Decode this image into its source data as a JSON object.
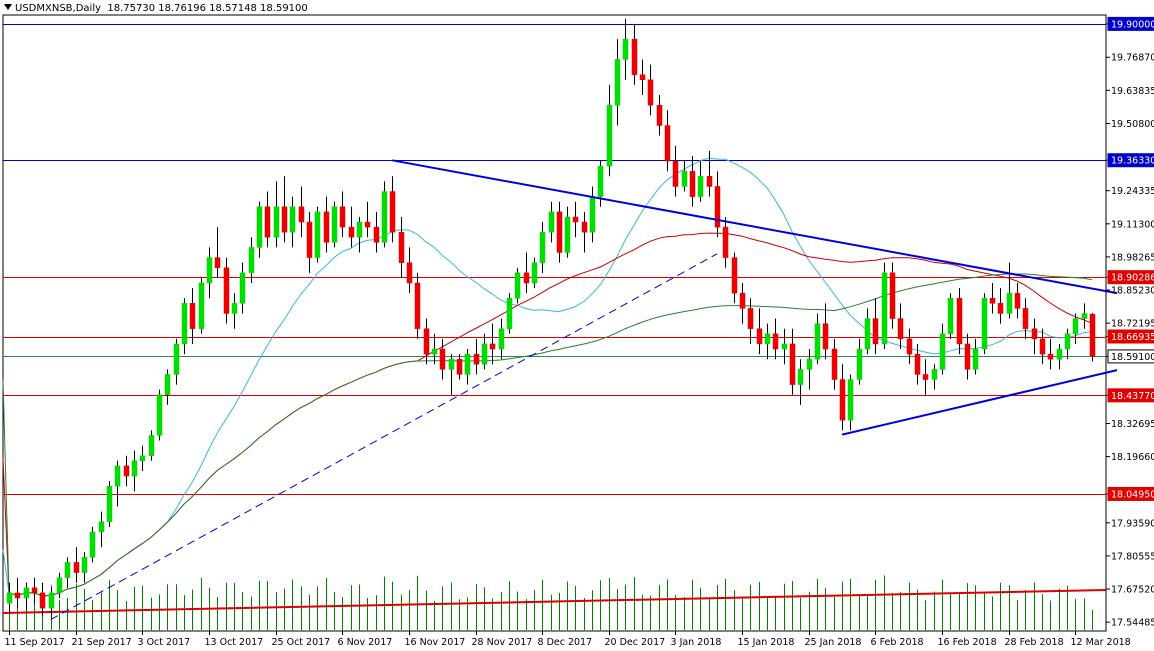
{
  "header": {
    "symbol": "USDMXNSB,Daily",
    "ohlc": "18.75730 18.76196 18.57148 18.59100"
  },
  "chart_data": {
    "type": "candlestick",
    "symbol": "USDMXNSB",
    "timeframe": "Daily",
    "ylim": [
      17.51,
      19.935
    ],
    "y_ticks": [
      "19.90000",
      "19.76870",
      "19.63835",
      "19.50800",
      "19.36330",
      "19.24335",
      "19.11300",
      "18.98265",
      "18.90286",
      "18.85230",
      "18.72195",
      "18.66935",
      "18.59100",
      "18.43770",
      "18.32695",
      "18.19660",
      "18.04950",
      "17.93590",
      "17.80555",
      "17.67520",
      "17.54485"
    ],
    "x_ticks": [
      {
        "label": "11 Sep 2017",
        "bar": 0
      },
      {
        "label": "21 Sep 2017",
        "bar": 8
      },
      {
        "label": "3 Oct 2017",
        "bar": 16
      },
      {
        "label": "13 Oct 2017",
        "bar": 24
      },
      {
        "label": "25 Oct 2017",
        "bar": 32
      },
      {
        "label": "6 Nov 2017",
        "bar": 40
      },
      {
        "label": "16 Nov 2017",
        "bar": 48
      },
      {
        "label": "28 Nov 2017",
        "bar": 56
      },
      {
        "label": "8 Dec 2017",
        "bar": 64
      },
      {
        "label": "20 Dec 2017",
        "bar": 72
      },
      {
        "label": "3 Jan 2018",
        "bar": 80
      },
      {
        "label": "15 Jan 2018",
        "bar": 88
      },
      {
        "label": "25 Jan 2018",
        "bar": 96
      },
      {
        "label": "6 Feb 2018",
        "bar": 104
      },
      {
        "label": "16 Feb 2018",
        "bar": 112
      },
      {
        "label": "28 Feb 2018",
        "bar": 120
      },
      {
        "label": "12 Mar 2018",
        "bar": 128
      }
    ],
    "horizontal_levels": [
      {
        "value": 19.9,
        "label": "19.90000",
        "color": "#0000cc",
        "tag_bg": "#0000cc"
      },
      {
        "value": 19.3633,
        "label": "19.36330",
        "color": "#0000cc",
        "tag_bg": "#0000cc"
      },
      {
        "value": 18.90286,
        "label": "18.90286",
        "color": "#e00000",
        "tag_bg": "#e00000"
      },
      {
        "value": 18.66935,
        "label": "18.66935",
        "color": "#e00000",
        "tag_bg": "#e00000"
      },
      {
        "value": 18.591,
        "label": "18.59100",
        "color": "#2e8b57",
        "tag_bg": "#ffffff"
      },
      {
        "value": 18.4377,
        "label": "18.43770",
        "color": "#e00000",
        "tag_bg": "#e00000"
      },
      {
        "value": 18.0495,
        "label": "18.04950",
        "color": "#e00000",
        "tag_bg": "#e00000"
      }
    ],
    "trendlines": [
      {
        "style": "solid",
        "color": "#0000dd",
        "from": {
          "bar": 46,
          "price": 19.363
        },
        "to": {
          "bar": 133,
          "price": 18.84
        }
      },
      {
        "style": "solid",
        "color": "#0000dd",
        "from": {
          "bar": 100,
          "price": 18.283
        },
        "to": {
          "bar": 133,
          "price": 18.537
        }
      },
      {
        "style": "dashed",
        "color": "#0000dd",
        "from": {
          "bar": 5,
          "price": 17.555
        },
        "to": {
          "bar": 85,
          "price": 18.995
        }
      }
    ],
    "colors": {
      "up": "#00dd00",
      "down": "#ee0000",
      "volume": "#008000",
      "ma_blue": "#3cb6d6",
      "ma_red": "#cc0000",
      "ma_green": "#2e7d32",
      "volume_ma": "#dd0000"
    },
    "candles": [
      [
        17.62,
        17.7,
        17.58,
        17.66
      ],
      [
        17.66,
        17.72,
        17.6,
        17.64
      ],
      [
        17.64,
        17.7,
        17.59,
        17.68
      ],
      [
        17.68,
        17.72,
        17.62,
        17.66
      ],
      [
        17.66,
        17.7,
        17.57,
        17.6
      ],
      [
        17.6,
        17.68,
        17.56,
        17.66
      ],
      [
        17.66,
        17.74,
        17.64,
        17.72
      ],
      [
        17.72,
        17.8,
        17.68,
        17.78
      ],
      [
        17.78,
        17.84,
        17.7,
        17.74
      ],
      [
        17.74,
        17.82,
        17.7,
        17.8
      ],
      [
        17.8,
        17.92,
        17.78,
        17.9
      ],
      [
        17.9,
        17.98,
        17.84,
        17.94
      ],
      [
        17.94,
        18.1,
        17.92,
        18.08
      ],
      [
        18.08,
        18.18,
        18.0,
        18.16
      ],
      [
        18.16,
        18.2,
        18.08,
        18.12
      ],
      [
        18.12,
        18.22,
        18.06,
        18.18
      ],
      [
        18.18,
        18.24,
        18.14,
        18.2
      ],
      [
        18.2,
        18.3,
        18.18,
        18.28
      ],
      [
        18.28,
        18.46,
        18.26,
        18.44
      ],
      [
        18.44,
        18.54,
        18.4,
        18.52
      ],
      [
        18.52,
        18.66,
        18.48,
        18.64
      ],
      [
        18.64,
        18.82,
        18.6,
        18.8
      ],
      [
        18.8,
        18.86,
        18.64,
        18.7
      ],
      [
        18.7,
        18.9,
        18.68,
        18.88
      ],
      [
        18.88,
        19.02,
        18.82,
        18.98
      ],
      [
        18.98,
        19.1,
        18.9,
        18.94
      ],
      [
        18.94,
        18.98,
        18.72,
        18.76
      ],
      [
        18.76,
        18.84,
        18.7,
        18.8
      ],
      [
        18.8,
        18.96,
        18.76,
        18.92
      ],
      [
        18.92,
        19.06,
        18.88,
        19.02
      ],
      [
        19.02,
        19.2,
        18.98,
        19.18
      ],
      [
        19.18,
        19.24,
        19.02,
        19.06
      ],
      [
        19.06,
        19.28,
        19.02,
        19.18
      ],
      [
        19.18,
        19.3,
        19.04,
        19.08
      ],
      [
        19.08,
        19.22,
        19.02,
        19.18
      ],
      [
        19.18,
        19.26,
        19.06,
        19.12
      ],
      [
        19.12,
        19.16,
        18.92,
        18.98
      ],
      [
        18.98,
        19.18,
        18.96,
        19.16
      ],
      [
        19.16,
        19.22,
        19.0,
        19.04
      ],
      [
        19.04,
        19.2,
        19.02,
        19.18
      ],
      [
        19.18,
        19.24,
        19.06,
        19.1
      ],
      [
        19.1,
        19.18,
        19.02,
        19.06
      ],
      [
        19.06,
        19.14,
        19.0,
        19.12
      ],
      [
        19.12,
        19.2,
        19.06,
        19.1
      ],
      [
        19.1,
        19.16,
        19.0,
        19.04
      ],
      [
        19.04,
        19.28,
        19.02,
        19.24
      ],
      [
        19.24,
        19.3,
        19.04,
        19.08
      ],
      [
        19.08,
        19.14,
        18.9,
        18.96
      ],
      [
        18.96,
        19.02,
        18.84,
        18.88
      ],
      [
        18.88,
        18.92,
        18.66,
        18.7
      ],
      [
        18.7,
        18.74,
        18.56,
        18.6
      ],
      [
        18.6,
        18.68,
        18.56,
        18.62
      ],
      [
        18.62,
        18.66,
        18.5,
        18.54
      ],
      [
        18.54,
        18.6,
        18.44,
        18.58
      ],
      [
        18.58,
        18.6,
        18.5,
        18.52
      ],
      [
        18.52,
        18.62,
        18.48,
        18.6
      ],
      [
        18.6,
        18.66,
        18.52,
        18.56
      ],
      [
        18.56,
        18.68,
        18.54,
        18.64
      ],
      [
        18.64,
        18.72,
        18.56,
        18.62
      ],
      [
        18.62,
        18.74,
        18.58,
        18.7
      ],
      [
        18.7,
        18.84,
        18.68,
        18.82
      ],
      [
        18.82,
        18.94,
        18.8,
        18.92
      ],
      [
        18.92,
        19.0,
        18.84,
        18.88
      ],
      [
        18.88,
        18.98,
        18.86,
        18.96
      ],
      [
        18.96,
        19.12,
        18.92,
        19.08
      ],
      [
        19.08,
        19.2,
        19.04,
        19.16
      ],
      [
        19.16,
        19.2,
        18.96,
        19.0
      ],
      [
        19.0,
        19.18,
        18.98,
        19.14
      ],
      [
        19.14,
        19.2,
        19.06,
        19.12
      ],
      [
        19.12,
        19.16,
        19.0,
        19.08
      ],
      [
        19.08,
        19.26,
        19.04,
        19.22
      ],
      [
        19.22,
        19.36,
        19.18,
        19.34
      ],
      [
        19.34,
        19.66,
        19.3,
        19.58
      ],
      [
        19.58,
        19.84,
        19.5,
        19.76
      ],
      [
        19.76,
        19.92,
        19.68,
        19.84
      ],
      [
        19.84,
        19.9,
        19.66,
        19.7
      ],
      [
        19.7,
        19.76,
        19.62,
        19.68
      ],
      [
        19.68,
        19.74,
        19.54,
        19.58
      ],
      [
        19.58,
        19.62,
        19.46,
        19.5
      ],
      [
        19.5,
        19.56,
        19.32,
        19.36
      ],
      [
        19.36,
        19.42,
        19.22,
        19.26
      ],
      [
        19.26,
        19.36,
        19.24,
        19.32
      ],
      [
        19.32,
        19.38,
        19.18,
        19.22
      ],
      [
        19.22,
        19.36,
        19.2,
        19.3
      ],
      [
        19.3,
        19.4,
        19.22,
        19.26
      ],
      [
        19.26,
        19.32,
        19.06,
        19.1
      ],
      [
        19.1,
        19.14,
        18.94,
        18.98
      ],
      [
        18.98,
        19.0,
        18.8,
        18.84
      ],
      [
        18.84,
        18.88,
        18.72,
        18.78
      ],
      [
        18.78,
        18.82,
        18.64,
        18.7
      ],
      [
        18.7,
        18.78,
        18.6,
        18.64
      ],
      [
        18.64,
        18.72,
        18.58,
        18.68
      ],
      [
        18.68,
        18.74,
        18.58,
        18.62
      ],
      [
        18.62,
        18.7,
        18.56,
        18.64
      ],
      [
        18.64,
        18.7,
        18.44,
        18.48
      ],
      [
        18.48,
        18.58,
        18.4,
        18.54
      ],
      [
        18.54,
        18.62,
        18.46,
        18.58
      ],
      [
        18.58,
        18.76,
        18.56,
        18.72
      ],
      [
        18.72,
        18.8,
        18.58,
        18.62
      ],
      [
        18.62,
        18.66,
        18.46,
        18.5
      ],
      [
        18.5,
        18.56,
        18.3,
        18.34
      ],
      [
        18.34,
        18.52,
        18.3,
        18.5
      ],
      [
        18.5,
        18.66,
        18.48,
        18.62
      ],
      [
        18.62,
        18.78,
        18.6,
        18.74
      ],
      [
        18.74,
        18.82,
        18.6,
        18.64
      ],
      [
        18.64,
        18.96,
        18.62,
        18.92
      ],
      [
        18.92,
        18.96,
        18.7,
        18.74
      ],
      [
        18.74,
        18.8,
        18.62,
        18.66
      ],
      [
        18.66,
        18.7,
        18.56,
        18.6
      ],
      [
        18.6,
        18.64,
        18.48,
        18.52
      ],
      [
        18.52,
        18.58,
        18.44,
        18.5
      ],
      [
        18.5,
        18.56,
        18.46,
        18.54
      ],
      [
        18.54,
        18.72,
        18.52,
        18.68
      ],
      [
        18.68,
        18.84,
        18.66,
        18.82
      ],
      [
        18.82,
        18.86,
        18.6,
        18.64
      ],
      [
        18.64,
        18.68,
        18.5,
        18.54
      ],
      [
        18.54,
        18.66,
        18.52,
        18.62
      ],
      [
        18.62,
        18.84,
        18.6,
        18.82
      ],
      [
        18.82,
        18.88,
        18.76,
        18.8
      ],
      [
        18.8,
        18.86,
        18.72,
        18.76
      ],
      [
        18.76,
        18.96,
        18.74,
        18.84
      ],
      [
        18.84,
        18.88,
        18.74,
        18.78
      ],
      [
        18.78,
        18.82,
        18.66,
        18.7
      ],
      [
        18.7,
        18.74,
        18.6,
        18.66
      ],
      [
        18.66,
        18.7,
        18.56,
        18.6
      ],
      [
        18.6,
        18.66,
        18.54,
        18.58
      ],
      [
        18.58,
        18.64,
        18.54,
        18.62
      ],
      [
        18.62,
        18.7,
        18.58,
        18.68
      ],
      [
        18.68,
        18.76,
        18.64,
        18.74
      ],
      [
        18.74,
        18.8,
        18.7,
        18.76
      ],
      [
        18.757,
        18.762,
        18.571,
        18.591
      ]
    ],
    "volume_note": "Volume histogram along bottom with a rising red volume moving average"
  }
}
